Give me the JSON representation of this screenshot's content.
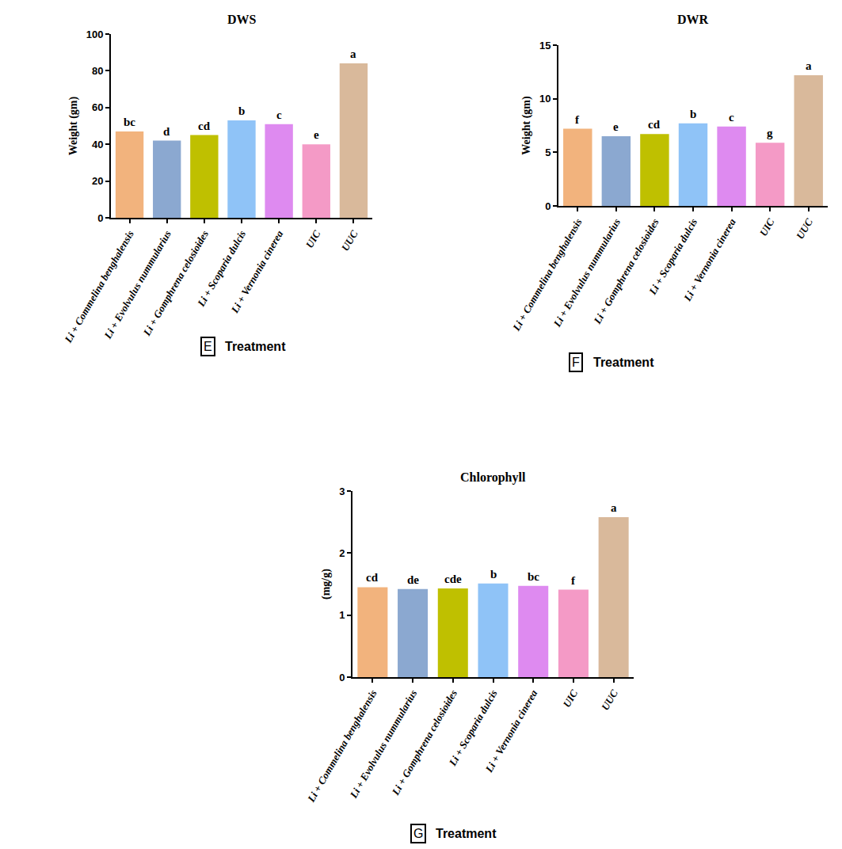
{
  "chart_data": [
    {
      "type": "bar",
      "title": "DWS",
      "x_label": "Treatment",
      "panel_label": "E",
      "y_label": "Weight (gm)",
      "categories": [
        "Li + Commelina benghalensis",
        "Li + Evolvulus nummularius",
        "Li + Gomphrena celosioides",
        "Li + Scoparia dulcis",
        "Li + Vernonia cinerea",
        "UIC",
        "UUC"
      ],
      "values": [
        47,
        42,
        45,
        53,
        51,
        40,
        84
      ],
      "annotations": [
        "bc",
        "d",
        "cd",
        "b",
        "c",
        "e",
        "a"
      ],
      "colors": [
        "#f2b37d",
        "#8ba8d0",
        "#bfc000",
        "#8fc3f7",
        "#de8af0",
        "#f49ac6",
        "#d9b99b"
      ],
      "ylim": [
        0,
        100
      ],
      "yticks": [
        0,
        20,
        40,
        60,
        80,
        100
      ],
      "grid": false
    },
    {
      "type": "bar",
      "title": "DWR",
      "x_label": "Treatment",
      "panel_label": "F",
      "y_label": "Weight (gm)",
      "categories": [
        "Li + Commelina benghalensis",
        "Li + Evolvulus nummularius",
        "Li + Gomphrena celosioides",
        "Li + Scoparia dulcis",
        "Li + Vernonia cinerea",
        "UIC",
        "UUC"
      ],
      "values": [
        7.2,
        6.5,
        6.7,
        7.7,
        7.4,
        5.9,
        12.2
      ],
      "annotations": [
        "f",
        "e",
        "cd",
        "b",
        "c",
        "g",
        "a"
      ],
      "colors": [
        "#f2b37d",
        "#8ba8d0",
        "#bfc000",
        "#8fc3f7",
        "#de8af0",
        "#f49ac6",
        "#d9b99b"
      ],
      "ylim": [
        0,
        15
      ],
      "yticks": [
        0,
        5,
        10,
        15
      ],
      "grid": false
    },
    {
      "type": "bar",
      "title": "Chlorophyll",
      "x_label": "Treatment",
      "panel_label": "G",
      "y_label": "(mg/g)",
      "categories": [
        "Li + Commelina benghalensis",
        "Li + Evolvulus nummularius",
        "Li + Gomphrena celosioides",
        "Li + Scoparia dulcis",
        "Li + Vernonia cinerea",
        "UIC",
        "UUC"
      ],
      "values": [
        1.45,
        1.42,
        1.43,
        1.51,
        1.47,
        1.41,
        2.58
      ],
      "annotations": [
        "cd",
        "de",
        "cde",
        "b",
        "bc",
        "f",
        "a"
      ],
      "colors": [
        "#f2b37d",
        "#8ba8d0",
        "#bfc000",
        "#8fc3f7",
        "#de8af0",
        "#f49ac6",
        "#d9b99b"
      ],
      "ylim": [
        0,
        3
      ],
      "yticks": [
        0,
        1,
        2,
        3
      ],
      "grid": false
    }
  ]
}
